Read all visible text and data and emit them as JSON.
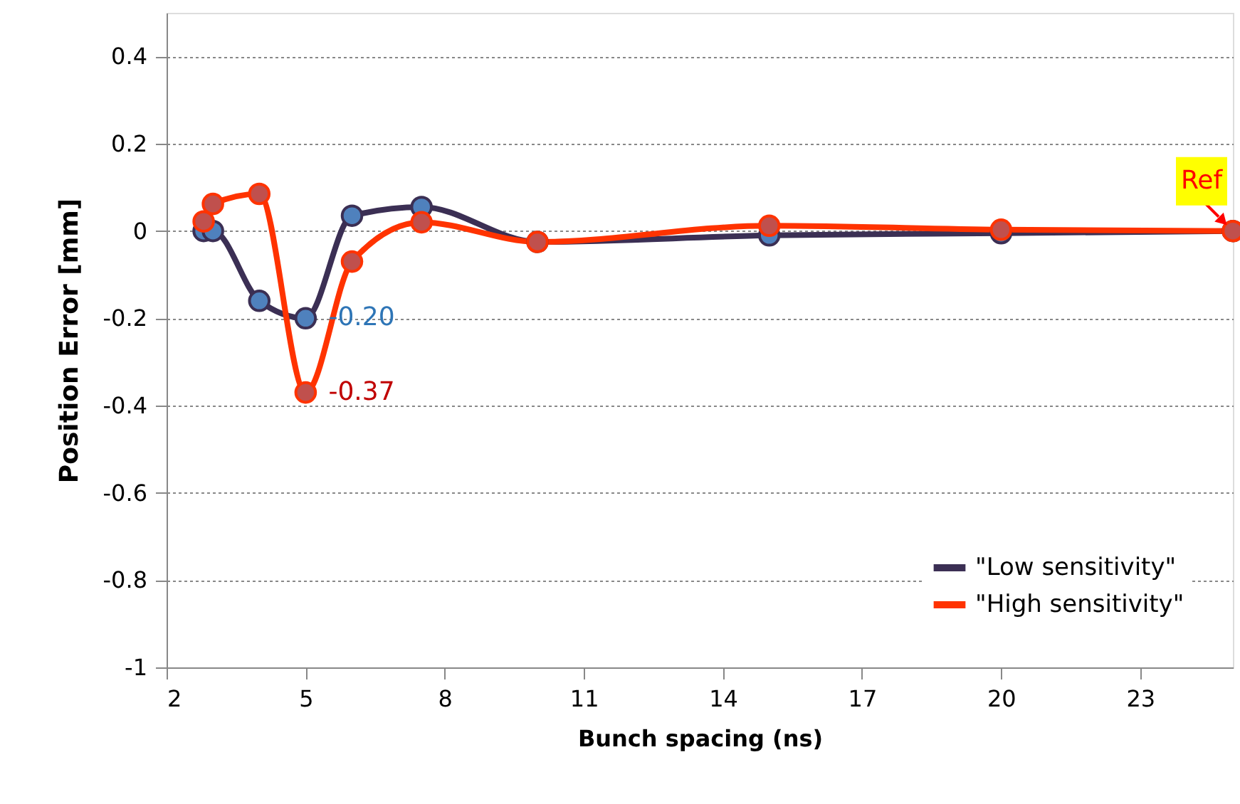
{
  "chart_data": {
    "type": "line",
    "xlabel": "Bunch spacing (ns)",
    "ylabel": "Position  Error [mm]",
    "xlim": [
      2,
      25
    ],
    "xticks": [
      2,
      5,
      8,
      11,
      14,
      17,
      20,
      23
    ],
    "ylim": [
      -1,
      0.5
    ],
    "yticks": [
      -1,
      -0.8,
      -0.6,
      -0.4,
      -0.2,
      0,
      0.2,
      0.4
    ],
    "grid": "y",
    "legend": "bottom right",
    "marker": "circle",
    "line_style": "solid",
    "series": [
      {
        "name": "\"Low sensitivity\"",
        "color": "#3b2f54",
        "x": [
          2.8,
          3.0,
          4,
          5,
          6,
          7.5,
          10,
          15,
          20,
          25
        ],
        "values": [
          0.0,
          0.0,
          -0.16,
          -0.2,
          0.035,
          0.055,
          -0.025,
          -0.01,
          -0.005,
          0.0
        ],
        "value_labels": [
          null,
          null,
          null,
          "-0.20",
          null,
          null,
          null,
          null,
          null,
          null
        ]
      },
      {
        "name": "\"High sensitivity\"",
        "color": "#ff3300",
        "x": [
          2.8,
          3.0,
          4,
          5,
          6,
          7.5,
          10,
          15,
          20,
          25
        ],
        "values": [
          0.022,
          0.062,
          0.085,
          -0.37,
          -0.07,
          0.02,
          -0.025,
          0.012,
          0.003,
          0.0
        ],
        "value_labels": [
          null,
          null,
          null,
          "-0.37",
          null,
          null,
          null,
          null,
          null,
          null
        ]
      }
    ],
    "annotations": [
      {
        "text": "Ref",
        "x": 25,
        "y": 0
      }
    ]
  }
}
